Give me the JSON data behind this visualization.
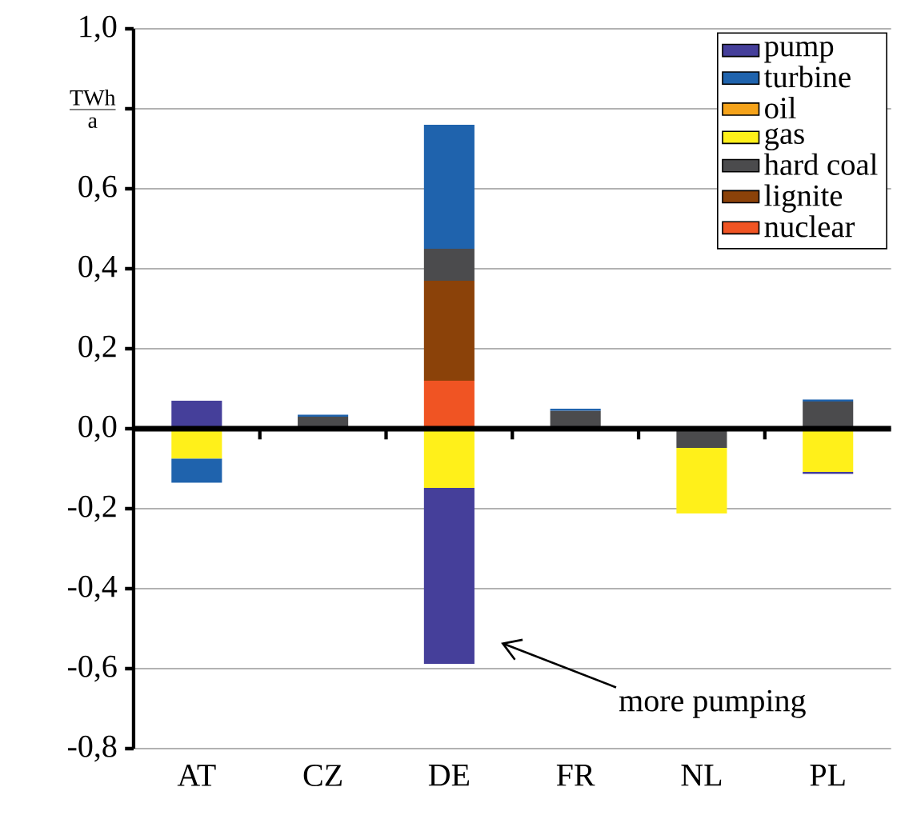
{
  "chart_data": {
    "type": "bar",
    "stacked": true,
    "ylabel": "\\frac{\\mathrm{TWh}}{\\mathrm{a}}",
    "categories": [
      "AT",
      "CZ",
      "DE",
      "FR",
      "NL",
      "PL"
    ],
    "series": [
      {
        "name": "nuclear",
        "color": "#f05423",
        "values": [
          0,
          0,
          0.12,
          0,
          0,
          0
        ]
      },
      {
        "name": "lignite",
        "color": "#8b4209",
        "values": [
          0,
          0,
          0.25,
          0,
          0,
          0
        ]
      },
      {
        "name": "hard coal",
        "color": "#4b4b4d",
        "values": [
          0,
          0.03,
          0.08,
          0.045,
          -0.048,
          0.068
        ]
      },
      {
        "name": "gas",
        "color": "#fff01a",
        "values": [
          -0.075,
          null,
          -0.148,
          0,
          -0.164,
          -0.108
        ]
      },
      {
        "name": "oil",
        "color": "#f5a31a",
        "values": [
          0,
          0,
          0,
          0,
          0,
          0
        ]
      },
      {
        "name": "turbine",
        "color": "#1f63ad",
        "values": [
          -0.06,
          0.005,
          0.31,
          0.005,
          0,
          0.005
        ]
      },
      {
        "name": "pump",
        "color": "#453f9a",
        "values": [
          0.07,
          0,
          -0.44,
          null,
          0,
          -0.005
        ]
      }
    ],
    "ylim": [
      -0.8,
      1.0
    ],
    "yticks": [
      {
        "value": -0.8,
        "label": "-0,8"
      },
      {
        "value": -0.6,
        "label": "-0,6"
      },
      {
        "value": -0.4,
        "label": "-0,4"
      },
      {
        "value": -0.2,
        "label": "-0,2"
      },
      {
        "value": 0.0,
        "label": "0,0"
      },
      {
        "value": 0.2,
        "label": "0,2"
      },
      {
        "value": 0.4,
        "label": "0,4"
      },
      {
        "value": 0.6,
        "label": "0,6"
      },
      {
        "value": 0.8,
        "label": null
      },
      {
        "value": 1.0,
        "label": "1,0"
      }
    ],
    "grid": "y",
    "legend": "top right",
    "annotations": [
      "more pumping"
    ]
  }
}
